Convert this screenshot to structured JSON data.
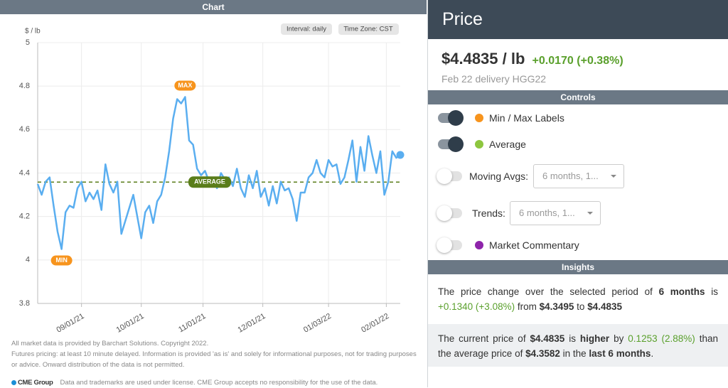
{
  "chart_panel": {
    "header": "Chart",
    "interval": "Interval: daily",
    "timezone": "Time Zone: CST",
    "footnotes": [
      "All market data is provided by Barchart Solutions. Copyright 2022.",
      "Futures pricing: at least 10 minute delayed. Information is provided 'as is' and solely for informational purposes, not for trading purposes or advice. Onward distribution of the data is not permitted."
    ],
    "cme_logo": "CME Group",
    "cme_note": "Data and trademarks are used under license. CME Group accepts no responsibility for the use of the data."
  },
  "chart_data": {
    "type": "line",
    "y_label": "$ / lb",
    "color": "#5aaef0",
    "x": [
      "2021-08-10",
      "2021-08-12",
      "2021-08-14",
      "2021-08-16",
      "2021-08-18",
      "2021-08-20",
      "2021-08-22",
      "2021-08-24",
      "2021-08-26",
      "2021-08-28",
      "2021-08-30",
      "2021-09-01",
      "2021-09-03",
      "2021-09-05",
      "2021-09-07",
      "2021-09-09",
      "2021-09-11",
      "2021-09-13",
      "2021-09-15",
      "2021-09-17",
      "2021-09-19",
      "2021-09-21",
      "2021-09-23",
      "2021-09-25",
      "2021-09-27",
      "2021-09-29",
      "2021-10-01",
      "2021-10-03",
      "2021-10-05",
      "2021-10-07",
      "2021-10-09",
      "2021-10-11",
      "2021-10-13",
      "2021-10-15",
      "2021-10-17",
      "2021-10-19",
      "2021-10-21",
      "2021-10-23",
      "2021-10-25",
      "2021-10-27",
      "2021-10-29",
      "2021-10-31",
      "2021-11-02",
      "2021-11-04",
      "2021-11-06",
      "2021-11-08",
      "2021-11-10",
      "2021-11-12",
      "2021-11-14",
      "2021-11-16",
      "2021-11-18",
      "2021-11-20",
      "2021-11-22",
      "2021-11-24",
      "2021-11-26",
      "2021-11-28",
      "2021-11-30",
      "2021-12-02",
      "2021-12-04",
      "2021-12-06",
      "2021-12-08",
      "2021-12-10",
      "2021-12-12",
      "2021-12-14",
      "2021-12-16",
      "2021-12-18",
      "2021-12-20",
      "2021-12-22",
      "2021-12-24",
      "2021-12-26",
      "2021-12-28",
      "2021-12-30",
      "2022-01-01",
      "2022-01-03",
      "2022-01-05",
      "2022-01-07",
      "2022-01-09",
      "2022-01-11",
      "2022-01-13",
      "2022-01-15",
      "2022-01-17",
      "2022-01-19",
      "2022-01-21",
      "2022-01-23",
      "2022-01-25",
      "2022-01-27",
      "2022-01-29",
      "2022-01-31",
      "2022-02-02",
      "2022-02-04",
      "2022-02-06",
      "2022-02-08"
    ],
    "values": [
      4.3495,
      4.3,
      4.36,
      4.38,
      4.25,
      4.13,
      4.05,
      4.22,
      4.25,
      4.24,
      4.33,
      4.36,
      4.27,
      4.31,
      4.28,
      4.32,
      4.23,
      4.44,
      4.35,
      4.31,
      4.36,
      4.12,
      4.18,
      4.24,
      4.3,
      4.2,
      4.1,
      4.22,
      4.25,
      4.17,
      4.27,
      4.3,
      4.38,
      4.5,
      4.65,
      4.74,
      4.72,
      4.75,
      4.55,
      4.53,
      4.42,
      4.39,
      4.41,
      4.36,
      4.37,
      4.33,
      4.4,
      4.37,
      4.38,
      4.34,
      4.42,
      4.33,
      4.29,
      4.39,
      4.33,
      4.41,
      4.29,
      4.33,
      4.25,
      4.34,
      4.26,
      4.36,
      4.32,
      4.33,
      4.28,
      4.18,
      4.31,
      4.31,
      4.38,
      4.4,
      4.46,
      4.4,
      4.38,
      4.46,
      4.43,
      4.44,
      4.35,
      4.38,
      4.46,
      4.55,
      4.36,
      4.52,
      4.41,
      4.57,
      4.48,
      4.4,
      4.5,
      4.3,
      4.36,
      4.5,
      4.47,
      4.4835
    ],
    "average": {
      "value": 4.3582,
      "label": "AVERAGE",
      "color": "#5a7d1a"
    },
    "max_label": "MAX",
    "min_label": "MIN",
    "minmax_color": "#f7941d",
    "xlim": [
      "2021-08-10",
      "2022-02-08"
    ],
    "xticks": [
      {
        "value": "2021-09-01",
        "label": "09/01/21"
      },
      {
        "value": "2021-10-01",
        "label": "10/01/21"
      },
      {
        "value": "2021-11-01",
        "label": "11/01/21"
      },
      {
        "value": "2021-12-01",
        "label": "12/01/21"
      },
      {
        "value": "2022-01-03",
        "label": "01/03/22"
      },
      {
        "value": "2022-02-01",
        "label": "02/01/22"
      }
    ],
    "ylim": [
      3.8,
      5
    ],
    "yticks": [
      3.8,
      4,
      4.2,
      4.4,
      4.6,
      4.8,
      5
    ],
    "grid": true
  },
  "price_panel": {
    "title": "Price",
    "price": "$4.4835 / lb",
    "change": "+0.0170 (+0.38%)",
    "delivery": "Feb 22 delivery HGG22"
  },
  "controls": {
    "title": "Controls",
    "items": [
      {
        "label": "Min / Max Labels",
        "on": true,
        "dot": "#f7941d"
      },
      {
        "label": "Average",
        "on": true,
        "dot": "#8dc63f"
      },
      {
        "label": "Moving Avgs:",
        "on": false,
        "select": "6 months, 1..."
      },
      {
        "label": "Trends:",
        "on": false,
        "select": "6 months, 1..."
      },
      {
        "label": "Market Commentary",
        "on": false,
        "dot": "#8e24aa"
      }
    ]
  },
  "insights": {
    "title": "Insights",
    "p1": [
      "The price change over the selected period of ",
      "6 months",
      " is ",
      "+0.1340 (+3.08%)",
      " from ",
      "$4.3495",
      " to ",
      "$4.4835"
    ],
    "p2": [
      "The current price of ",
      "$4.4835",
      " is ",
      "higher",
      " by ",
      "0.1253 (2.88%)",
      " than the average price of ",
      "$4.3582",
      " in the ",
      "last 6 months",
      "."
    ]
  }
}
